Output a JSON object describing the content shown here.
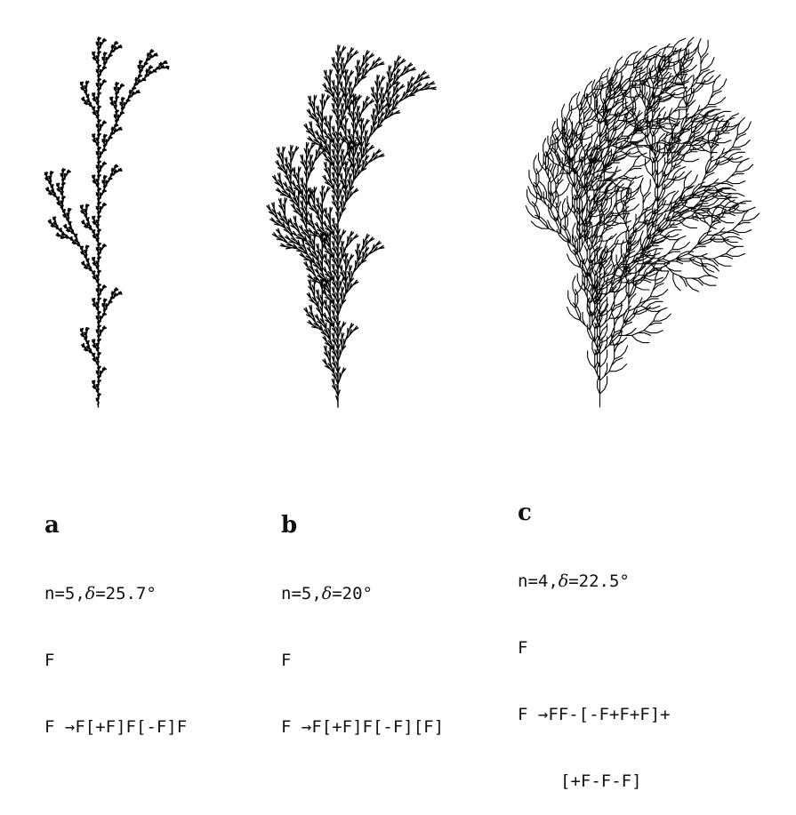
{
  "diagram": {
    "stroke_color": "#000000",
    "panels": [
      {
        "id": "a",
        "label": "a",
        "n": 5,
        "delta_deg": 25.7,
        "params": {
          "n": "n=5,",
          "delta_symbol": "δ",
          "delta": "=25.7°"
        },
        "axiom": "F",
        "rule_lines": [
          "F →F[+F]F[-F]F"
        ],
        "rule": "F[+F]F[-F]F"
      },
      {
        "id": "b",
        "label": "b",
        "n": 5,
        "delta_deg": 20,
        "params": {
          "n": "n=5,",
          "delta_symbol": "δ",
          "delta": "=20°"
        },
        "axiom": "F",
        "rule_lines": [
          "F →F[+F]F[-F][F]"
        ],
        "rule": "F[+F]F[-F][F]"
      },
      {
        "id": "c",
        "label": "c",
        "n": 4,
        "delta_deg": 22.5,
        "params": {
          "n": "n=4,",
          "delta_symbol": "δ",
          "delta": "=22.5°"
        },
        "axiom": "F",
        "rule_lines": [
          "F →FF-[-F+F+F]+",
          "[+F-F-F]"
        ],
        "rule": "FF-[-F+F+F]+[+F-F-F]"
      }
    ]
  }
}
